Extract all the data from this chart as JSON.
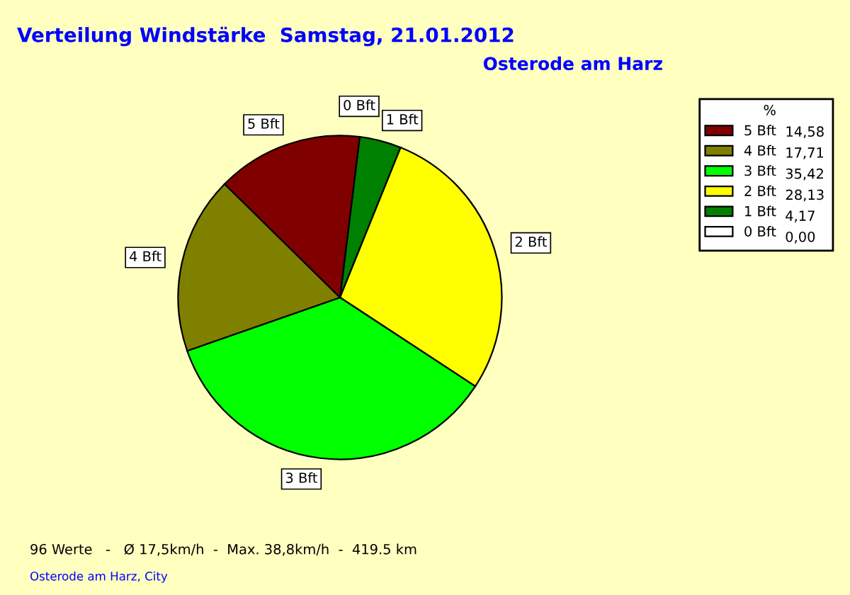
{
  "chart_data": {
    "type": "pie",
    "title": "Verteilung Windstärke  Samstag, 21.01.2012",
    "subtitle": "Osterode am Harz",
    "categories": [
      "0 Bft",
      "1 Bft",
      "2 Bft",
      "3 Bft",
      "4 Bft",
      "5 Bft"
    ],
    "values": [
      0.0,
      4.17,
      28.13,
      35.42,
      17.71,
      14.58
    ],
    "colors": [
      "#ffffff",
      "#008000",
      "#ffff00",
      "#00ff00",
      "#808000",
      "#800000"
    ],
    "value_labels": [
      "0,00",
      "4,17",
      "28,13",
      "35,42",
      "17,71",
      "14,58"
    ],
    "legend_title": "%",
    "legend": "right",
    "annotations": [
      "96 Werte   -   Ø 17,5km/h  -  Max. 38,8km/h  -  419.5 km",
      "Osterode am Harz, City"
    ]
  }
}
